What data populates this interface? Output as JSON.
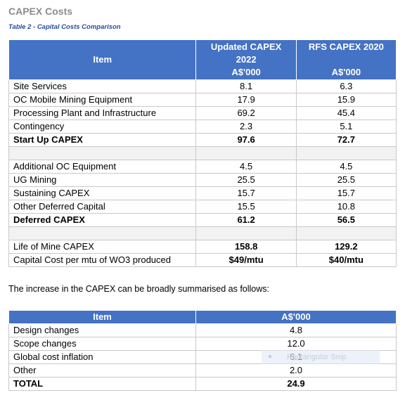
{
  "section_title": "CAPEX Costs",
  "table1": {
    "caption": "Table 2 - Capital Costs Comparison",
    "header": {
      "item": "Item",
      "col1_line1": "Updated CAPEX",
      "col1_line2": "2022",
      "col1_unit": "A$'000",
      "col2_line1": "RFS CAPEX 2020",
      "col2_unit": "A$'000"
    },
    "rows": [
      {
        "item": "Site Services",
        "updated": "8.1",
        "rfs": "6.3"
      },
      {
        "item": "OC Mobile Mining Equipment",
        "updated": "17.9",
        "rfs": "15.9"
      },
      {
        "item": "Processing Plant and Infrastructure",
        "updated": "69.2",
        "rfs": "45.4"
      },
      {
        "item": "Contingency",
        "updated": "2.3",
        "rfs": "5.1"
      },
      {
        "item": "Start Up CAPEX",
        "updated": "97.6",
        "rfs": "72.7"
      },
      {
        "item": "Additional OC Equipment",
        "updated": "4.5",
        "rfs": "4.5"
      },
      {
        "item": "UG Mining",
        "updated": "25.5",
        "rfs": "25.5"
      },
      {
        "item": "Sustaining CAPEX",
        "updated": "15.7",
        "rfs": "15.7"
      },
      {
        "item": "Other Deferred Capital",
        "updated": "15.5",
        "rfs": "10.8"
      },
      {
        "item": "Deferred CAPEX",
        "updated": "61.2",
        "rfs": "56.5"
      },
      {
        "item": "Life of Mine CAPEX",
        "updated": "158.8",
        "rfs": "129.2"
      },
      {
        "item": "Capital Cost per mtu of WO3 produced",
        "updated": "$49/mtu",
        "rfs": "$40/mtu"
      }
    ]
  },
  "paragraph": "The increase in the CAPEX can be broadly summarised as follows:",
  "table2": {
    "header": {
      "item": "Item",
      "value": "A$'000"
    },
    "rows": [
      {
        "item": "Design changes",
        "value": "4.8"
      },
      {
        "item": "Scope changes",
        "value": "12.0"
      },
      {
        "item": "Global cost inflation",
        "value": "6.1"
      },
      {
        "item": "Other",
        "value": "2.0"
      },
      {
        "item": "TOTAL",
        "value": "24.9"
      }
    ]
  },
  "overlay": {
    "text": "Rectangular Snip"
  }
}
